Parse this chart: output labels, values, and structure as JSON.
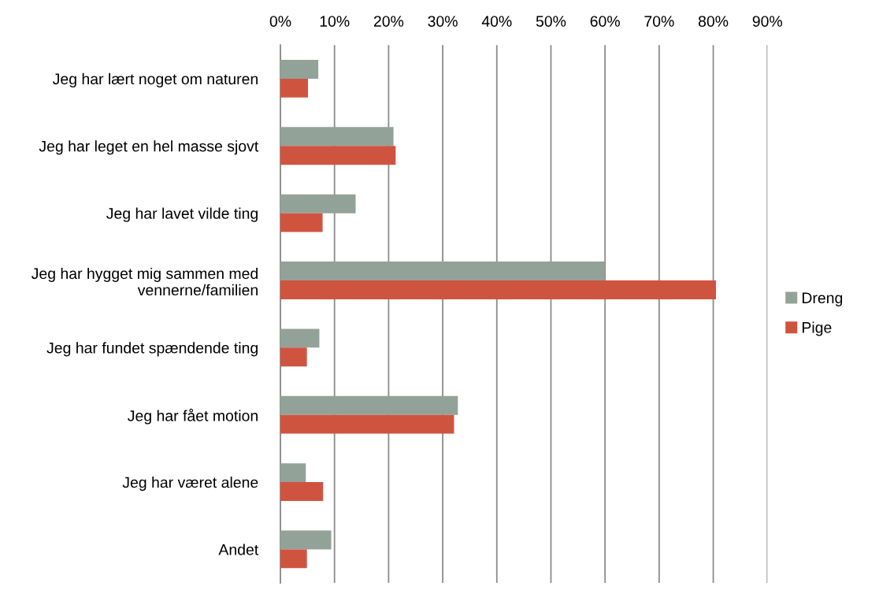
{
  "chart_data": {
    "type": "bar",
    "orientation": "horizontal",
    "categories": [
      "Jeg har lært noget om naturen",
      "Jeg har leget en hel masse sjovt",
      "Jeg har lavet vilde ting",
      "Jeg har hygget mig sammen med vennerne/familien",
      "Jeg har fundet spændende ting",
      "Jeg har fået motion",
      "Jeg har været alene",
      "Andet"
    ],
    "series": [
      {
        "name": "Dreng",
        "color": "#93a299",
        "values": [
          7.0,
          20.9,
          13.9,
          60.0,
          7.2,
          32.8,
          4.7,
          9.4
        ]
      },
      {
        "name": "Pige",
        "color": "#cf543f",
        "values": [
          5.1,
          21.3,
          7.8,
          80.5,
          4.9,
          32.1,
          7.9,
          4.9
        ]
      }
    ],
    "xlim": [
      0,
      90
    ],
    "xticks": [
      {
        "value": 0,
        "label": "0%"
      },
      {
        "value": 10,
        "label": "10%"
      },
      {
        "value": 20,
        "label": "20%"
      },
      {
        "value": 30,
        "label": "30%"
      },
      {
        "value": 40,
        "label": "40%"
      },
      {
        "value": 50,
        "label": "50%"
      },
      {
        "value": 60,
        "label": "60%"
      },
      {
        "value": 70,
        "label": "70%"
      },
      {
        "value": 80,
        "label": "80%"
      },
      {
        "value": 90,
        "label": "90%"
      }
    ],
    "grid": "x",
    "legend": "right"
  }
}
